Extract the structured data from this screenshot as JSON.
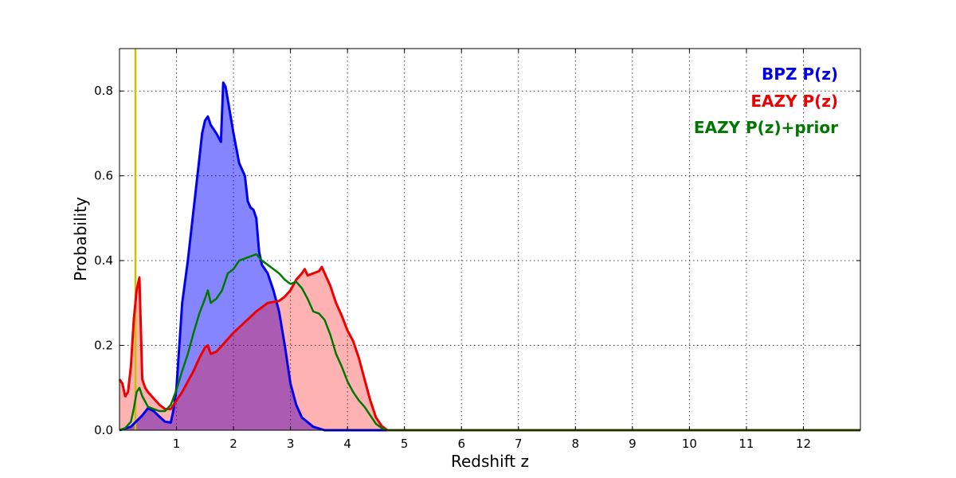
{
  "chart_data": {
    "type": "area",
    "title": "",
    "xlabel": "Redshift z",
    "ylabel": "Probability",
    "xlim": [
      0,
      13
    ],
    "ylim": [
      0,
      0.9
    ],
    "xticks": [
      1,
      2,
      3,
      4,
      5,
      6,
      7,
      8,
      9,
      10,
      11,
      12
    ],
    "xtick_labels": [
      "1",
      "2",
      "3",
      "4",
      "5",
      "6",
      "7",
      "8",
      "9",
      "10",
      "11",
      "12"
    ],
    "yticks": [
      0,
      0.2,
      0.4,
      0.6,
      0.8
    ],
    "ytick_labels": [
      "0.0",
      "0.2",
      "0.4",
      "0.6",
      "0.8"
    ],
    "grid": true,
    "legend_position": "top-right",
    "vline": {
      "x": 0.28,
      "color": "#c8c000"
    },
    "series": [
      {
        "name": "BPZ P(z)",
        "color": "#0000ee",
        "fill": "rgba(0,0,255,0.48)",
        "points": [
          [
            0.0,
            0.0
          ],
          [
            0.2,
            0.008
          ],
          [
            0.4,
            0.035
          ],
          [
            0.5,
            0.052
          ],
          [
            0.6,
            0.045
          ],
          [
            0.7,
            0.032
          ],
          [
            0.8,
            0.02
          ],
          [
            0.9,
            0.018
          ],
          [
            0.95,
            0.05
          ],
          [
            1.0,
            0.1
          ],
          [
            1.05,
            0.2
          ],
          [
            1.1,
            0.3
          ],
          [
            1.2,
            0.4
          ],
          [
            1.3,
            0.52
          ],
          [
            1.4,
            0.64
          ],
          [
            1.45,
            0.7
          ],
          [
            1.5,
            0.73
          ],
          [
            1.55,
            0.74
          ],
          [
            1.6,
            0.72
          ],
          [
            1.7,
            0.7
          ],
          [
            1.78,
            0.68
          ],
          [
            1.82,
            0.82
          ],
          [
            1.86,
            0.81
          ],
          [
            1.9,
            0.78
          ],
          [
            2.0,
            0.7
          ],
          [
            2.1,
            0.63
          ],
          [
            2.2,
            0.6
          ],
          [
            2.25,
            0.54
          ],
          [
            2.3,
            0.525
          ],
          [
            2.35,
            0.52
          ],
          [
            2.4,
            0.5
          ],
          [
            2.45,
            0.42
          ],
          [
            2.5,
            0.39
          ],
          [
            2.6,
            0.37
          ],
          [
            2.7,
            0.33
          ],
          [
            2.8,
            0.28
          ],
          [
            2.9,
            0.2
          ],
          [
            3.0,
            0.11
          ],
          [
            3.1,
            0.06
          ],
          [
            3.2,
            0.03
          ],
          [
            3.4,
            0.008
          ],
          [
            3.6,
            0.0
          ],
          [
            13.0,
            0.0
          ]
        ]
      },
      {
        "name": "EAZY P(z)",
        "color": "#ee0000",
        "fill": "rgba(255,0,0,0.3)",
        "points": [
          [
            0.0,
            0.12
          ],
          [
            0.05,
            0.11
          ],
          [
            0.1,
            0.08
          ],
          [
            0.15,
            0.09
          ],
          [
            0.2,
            0.15
          ],
          [
            0.25,
            0.26
          ],
          [
            0.3,
            0.33
          ],
          [
            0.35,
            0.36
          ],
          [
            0.4,
            0.12
          ],
          [
            0.45,
            0.1
          ],
          [
            0.5,
            0.09
          ],
          [
            0.6,
            0.075
          ],
          [
            0.7,
            0.06
          ],
          [
            0.8,
            0.05
          ],
          [
            0.9,
            0.05
          ],
          [
            1.0,
            0.07
          ],
          [
            1.1,
            0.09
          ],
          [
            1.2,
            0.115
          ],
          [
            1.3,
            0.14
          ],
          [
            1.4,
            0.17
          ],
          [
            1.5,
            0.195
          ],
          [
            1.55,
            0.2
          ],
          [
            1.6,
            0.18
          ],
          [
            1.7,
            0.185
          ],
          [
            1.8,
            0.2
          ],
          [
            1.9,
            0.215
          ],
          [
            2.0,
            0.23
          ],
          [
            2.2,
            0.255
          ],
          [
            2.4,
            0.28
          ],
          [
            2.6,
            0.3
          ],
          [
            2.8,
            0.305
          ],
          [
            2.9,
            0.315
          ],
          [
            3.0,
            0.33
          ],
          [
            3.1,
            0.355
          ],
          [
            3.2,
            0.37
          ],
          [
            3.25,
            0.38
          ],
          [
            3.3,
            0.365
          ],
          [
            3.4,
            0.37
          ],
          [
            3.5,
            0.375
          ],
          [
            3.55,
            0.385
          ],
          [
            3.6,
            0.37
          ],
          [
            3.7,
            0.34
          ],
          [
            3.8,
            0.3
          ],
          [
            3.9,
            0.27
          ],
          [
            4.0,
            0.235
          ],
          [
            4.1,
            0.21
          ],
          [
            4.2,
            0.17
          ],
          [
            4.3,
            0.12
          ],
          [
            4.4,
            0.07
          ],
          [
            4.5,
            0.03
          ],
          [
            4.6,
            0.01
          ],
          [
            4.7,
            0.0
          ],
          [
            13.0,
            0.0
          ]
        ]
      },
      {
        "name": "EAZY P(z)+prior",
        "color": "#007700",
        "fill": "none",
        "points": [
          [
            0.0,
            0.0
          ],
          [
            0.1,
            0.005
          ],
          [
            0.2,
            0.02
          ],
          [
            0.25,
            0.05
          ],
          [
            0.3,
            0.09
          ],
          [
            0.35,
            0.1
          ],
          [
            0.4,
            0.08
          ],
          [
            0.5,
            0.055
          ],
          [
            0.6,
            0.05
          ],
          [
            0.7,
            0.045
          ],
          [
            0.8,
            0.045
          ],
          [
            0.9,
            0.06
          ],
          [
            1.0,
            0.095
          ],
          [
            1.1,
            0.14
          ],
          [
            1.2,
            0.18
          ],
          [
            1.3,
            0.23
          ],
          [
            1.4,
            0.275
          ],
          [
            1.5,
            0.31
          ],
          [
            1.55,
            0.33
          ],
          [
            1.6,
            0.3
          ],
          [
            1.7,
            0.31
          ],
          [
            1.8,
            0.33
          ],
          [
            1.9,
            0.37
          ],
          [
            2.0,
            0.38
          ],
          [
            2.1,
            0.4
          ],
          [
            2.2,
            0.405
          ],
          [
            2.3,
            0.41
          ],
          [
            2.4,
            0.415
          ],
          [
            2.5,
            0.4
          ],
          [
            2.6,
            0.39
          ],
          [
            2.7,
            0.38
          ],
          [
            2.8,
            0.37
          ],
          [
            2.9,
            0.355
          ],
          [
            3.0,
            0.345
          ],
          [
            3.1,
            0.35
          ],
          [
            3.2,
            0.335
          ],
          [
            3.3,
            0.31
          ],
          [
            3.4,
            0.28
          ],
          [
            3.5,
            0.275
          ],
          [
            3.6,
            0.26
          ],
          [
            3.7,
            0.225
          ],
          [
            3.8,
            0.18
          ],
          [
            3.9,
            0.15
          ],
          [
            4.0,
            0.115
          ],
          [
            4.1,
            0.09
          ],
          [
            4.2,
            0.07
          ],
          [
            4.3,
            0.055
          ],
          [
            4.4,
            0.035
          ],
          [
            4.5,
            0.015
          ],
          [
            4.6,
            0.005
          ],
          [
            4.7,
            0.0
          ],
          [
            13.0,
            0.0
          ]
        ]
      }
    ]
  }
}
